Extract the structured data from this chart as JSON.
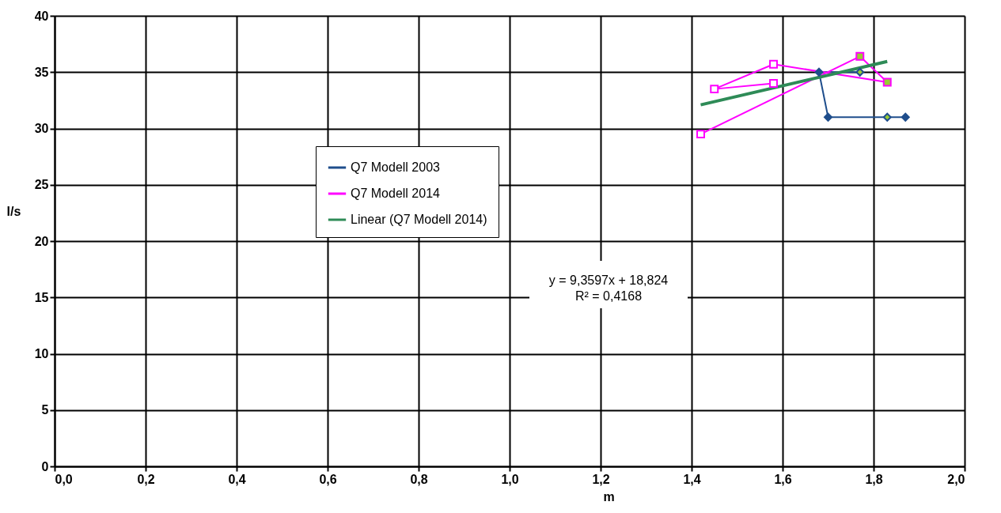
{
  "chart_data": {
    "type": "line",
    "xlabel": "m",
    "ylabel": "l/s",
    "xlim": [
      0,
      2
    ],
    "xticks": [
      {
        "value": 0,
        "label": "0,0"
      },
      {
        "value": 0.2,
        "label": "0,2"
      },
      {
        "value": 0.4,
        "label": "0,4"
      },
      {
        "value": 0.6,
        "label": "0,6"
      },
      {
        "value": 0.8,
        "label": "0,8"
      },
      {
        "value": 1,
        "label": "1,0"
      },
      {
        "value": 1.2,
        "label": "1,2"
      },
      {
        "value": 1.4,
        "label": "1,4"
      },
      {
        "value": 1.6,
        "label": "1,6"
      },
      {
        "value": 1.8,
        "label": "1,8"
      },
      {
        "value": 2,
        "label": "2,0"
      }
    ],
    "ylim": [
      0,
      40
    ],
    "yticks": [
      0,
      5,
      10,
      15,
      20,
      25,
      30,
      35,
      40
    ],
    "grid": true,
    "legend": "center",
    "series": [
      {
        "name": "Q7 Modell 2003",
        "color": "#1f4e8c",
        "marker": "diamond",
        "x": [
          1.77,
          1.68,
          1.7,
          1.83,
          1.87
        ],
        "values": [
          35.0,
          35.0,
          31.0,
          31.0,
          31.0
        ],
        "colors": [
          "#99cc33",
          "#1f4e8c",
          "#1f4e8c",
          "#99cc33",
          "#1f4e8c"
        ]
      },
      {
        "name": "Q7 Modell 2014",
        "color": "#ff00ff",
        "marker": "square",
        "x": [
          1.58,
          1.45,
          1.58,
          1.83,
          1.77,
          1.42
        ],
        "values": [
          34.0,
          33.5,
          35.7,
          34.1,
          36.4,
          29.5
        ],
        "colors": [
          "#ffffff",
          "#ffffff",
          "#ffffff",
          "#99cc33",
          "#99cc33",
          "#ffffff"
        ]
      },
      {
        "name": "Linear (Q7 Modell 2014)",
        "color": "#2e8b57",
        "marker": "none",
        "x": [
          1.42,
          1.83
        ],
        "values": [
          32.1,
          35.95
        ]
      }
    ],
    "annotations": [
      "y = 9,3597x + 18,824",
      "R² = 0,4168"
    ]
  }
}
